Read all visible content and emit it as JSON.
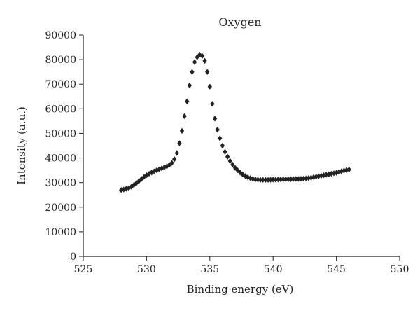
{
  "chart_data": {
    "type": "scatter",
    "title": "Oxygen",
    "xlabel": "Binding energy (eV)",
    "ylabel": "Intensity (a.u.)",
    "xlim": [
      525,
      550
    ],
    "ylim": [
      0,
      90000
    ],
    "x_ticks": [
      "525",
      "530",
      "535",
      "540",
      "545",
      "550"
    ],
    "y_ticks": [
      "0",
      "10000",
      "20000",
      "30000",
      "40000",
      "50000",
      "60000",
      "70000",
      "80000",
      "90000"
    ],
    "marker": "diamond",
    "grid": false,
    "legend": "none",
    "colors": {
      "marker": "#222222",
      "axis": "#222222",
      "text": "#222222"
    },
    "series": [
      {
        "x": [
          528.0,
          528.2,
          528.4,
          528.6,
          528.8,
          529.0,
          529.2,
          529.4,
          529.6,
          529.8,
          530.0,
          530.2,
          530.4,
          530.6,
          530.8,
          531.0,
          531.2,
          531.4,
          531.6,
          531.8,
          532.0,
          532.2,
          532.4,
          532.6,
          532.8,
          533.0,
          533.2,
          533.4,
          533.6,
          533.8,
          534.0,
          534.2,
          534.4,
          534.6,
          534.8,
          535.0,
          535.2,
          535.4,
          535.6,
          535.8,
          536.0,
          536.2,
          536.4,
          536.6,
          536.8,
          537.0,
          537.2,
          537.4,
          537.6,
          537.8,
          538.0,
          538.2,
          538.4,
          538.6,
          538.8,
          539.0,
          539.2,
          539.4,
          539.6,
          539.8,
          540.0,
          540.2,
          540.4,
          540.6,
          540.8,
          541.0,
          541.2,
          541.4,
          541.6,
          541.8,
          542.0,
          542.2,
          542.4,
          542.6,
          542.8,
          543.0,
          543.2,
          543.4,
          543.6,
          543.8,
          544.0,
          544.2,
          544.4,
          544.6,
          544.8,
          545.0,
          545.2,
          545.4,
          545.6,
          545.8,
          546.0
        ],
        "y": [
          27000,
          27200,
          27500,
          27800,
          28300,
          29000,
          29800,
          30600,
          31500,
          32300,
          33000,
          33600,
          34100,
          34600,
          35000,
          35400,
          35800,
          36200,
          36600,
          37200,
          38000,
          39500,
          42000,
          46000,
          51000,
          57000,
          63000,
          69500,
          75000,
          79000,
          81000,
          82000,
          81500,
          79500,
          75000,
          69000,
          62000,
          56000,
          51500,
          48000,
          45000,
          42500,
          40500,
          38800,
          37300,
          36000,
          35000,
          34100,
          33300,
          32700,
          32200,
          31800,
          31500,
          31300,
          31200,
          31100,
          31100,
          31100,
          31100,
          31150,
          31200,
          31200,
          31250,
          31300,
          31300,
          31350,
          31400,
          31400,
          31450,
          31500,
          31500,
          31550,
          31600,
          31700,
          31800,
          32000,
          32200,
          32400,
          32600,
          32800,
          33000,
          33200,
          33400,
          33600,
          33800,
          34000,
          34300,
          34600,
          34900,
          35100,
          35300
        ]
      }
    ]
  }
}
